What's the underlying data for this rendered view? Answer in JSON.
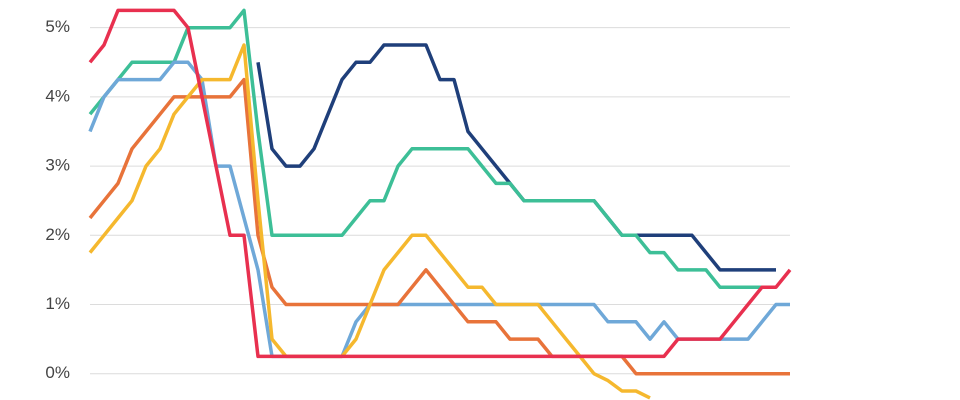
{
  "chart_data": {
    "type": "line",
    "categories": [
      null,
      null,
      null,
      null,
      null,
      null,
      null,
      null,
      null,
      null,
      null,
      null,
      null,
      null,
      null,
      null,
      null,
      null,
      null,
      null,
      null,
      null,
      null,
      null,
      null,
      null,
      null,
      null,
      null,
      null,
      null,
      null,
      null,
      null,
      null,
      null,
      null,
      null,
      null,
      null,
      null,
      null,
      null,
      null,
      null,
      null,
      null,
      null,
      null,
      null,
      null
    ],
    "ylim": [
      -0.38,
      5.4
    ],
    "yticks": [
      {
        "value": 0,
        "label": "0%"
      },
      {
        "value": 1,
        "label": "1%"
      },
      {
        "value": 2,
        "label": "2%"
      },
      {
        "value": 3,
        "label": "3%"
      },
      {
        "value": 4,
        "label": "4%"
      },
      {
        "value": 5,
        "label": "5%"
      }
    ],
    "grid": true,
    "series": [
      {
        "color": "#1f3f7a",
        "values": [
          null,
          null,
          null,
          null,
          null,
          null,
          null,
          null,
          null,
          null,
          null,
          null,
          4.5,
          3.25,
          3.0,
          3.0,
          3.25,
          3.75,
          4.25,
          4.5,
          4.5,
          4.75,
          4.75,
          4.75,
          4.75,
          4.25,
          4.25,
          3.5,
          3.25,
          3.0,
          2.75,
          2.5,
          2.5,
          2.5,
          2.5,
          2.5,
          2.5,
          2.25,
          2.0,
          2.0,
          2.0,
          2.0,
          2.0,
          2.0,
          1.75,
          1.5,
          1.5,
          1.5,
          1.5,
          1.5,
          null
        ]
      },
      {
        "color": "#3dbf97",
        "values": [
          3.75,
          4.0,
          4.25,
          4.5,
          4.5,
          4.5,
          4.5,
          5.0,
          5.0,
          5.0,
          5.0,
          5.25,
          3.5,
          2.0,
          2.0,
          2.0,
          2.0,
          2.0,
          2.0,
          2.25,
          2.5,
          2.5,
          3.0,
          3.25,
          3.25,
          3.25,
          3.25,
          3.25,
          3.0,
          2.75,
          2.75,
          2.5,
          2.5,
          2.5,
          2.5,
          2.5,
          2.5,
          2.25,
          2.0,
          2.0,
          1.75,
          1.75,
          1.5,
          1.5,
          1.5,
          1.25,
          1.25,
          1.25,
          1.25,
          1.25,
          null
        ]
      },
      {
        "color": "#6fa8d8",
        "values": [
          3.5,
          4.0,
          4.25,
          4.25,
          4.25,
          4.25,
          4.5,
          4.5,
          4.25,
          3.0,
          3.0,
          2.25,
          1.5,
          0.25,
          0.25,
          0.25,
          0.25,
          0.25,
          0.25,
          0.75,
          1.0,
          1.0,
          1.0,
          1.0,
          1.0,
          1.0,
          1.0,
          1.0,
          1.0,
          1.0,
          1.0,
          1.0,
          1.0,
          1.0,
          1.0,
          1.0,
          1.0,
          0.75,
          0.75,
          0.75,
          0.5,
          0.75,
          0.5,
          0.5,
          0.5,
          0.5,
          0.5,
          0.5,
          0.75,
          1.0,
          1.0
        ]
      },
      {
        "color": "#e8733a",
        "values": [
          2.25,
          2.5,
          2.75,
          3.25,
          3.5,
          3.75,
          4.0,
          4.0,
          4.0,
          4.0,
          4.0,
          4.25,
          2.0,
          1.25,
          1.0,
          1.0,
          1.0,
          1.0,
          1.0,
          1.0,
          1.0,
          1.0,
          1.0,
          1.25,
          1.5,
          1.25,
          1.0,
          0.75,
          0.75,
          0.75,
          0.5,
          0.5,
          0.5,
          0.25,
          0.25,
          0.25,
          0.25,
          0.25,
          0.25,
          0.0,
          0.0,
          0.0,
          0.0,
          0.0,
          0.0,
          0.0,
          0.0,
          0.0,
          0.0,
          0.0,
          0.0
        ]
      },
      {
        "color": "#f5b82e",
        "values": [
          1.75,
          2.0,
          2.25,
          2.5,
          3.0,
          3.25,
          3.75,
          4.0,
          4.25,
          4.25,
          4.25,
          4.75,
          2.5,
          0.5,
          0.25,
          0.25,
          0.25,
          0.25,
          0.25,
          0.5,
          1.0,
          1.5,
          1.75,
          2.0,
          2.0,
          1.75,
          1.5,
          1.25,
          1.25,
          1.0,
          1.0,
          1.0,
          1.0,
          0.75,
          0.5,
          0.25,
          0.0,
          -0.1,
          -0.25,
          -0.25,
          -0.35,
          null,
          null,
          null,
          null,
          null,
          null,
          null,
          null,
          null,
          null
        ]
      },
      {
        "color": "#e8304f",
        "values": [
          4.5,
          4.75,
          5.25,
          5.25,
          5.25,
          5.25,
          5.25,
          5.0,
          4.0,
          3.0,
          2.0,
          2.0,
          0.25,
          0.25,
          0.25,
          0.25,
          0.25,
          0.25,
          0.25,
          0.25,
          0.25,
          0.25,
          0.25,
          0.25,
          0.25,
          0.25,
          0.25,
          0.25,
          0.25,
          0.25,
          0.25,
          0.25,
          0.25,
          0.25,
          0.25,
          0.25,
          0.25,
          0.25,
          0.25,
          0.25,
          0.25,
          0.25,
          0.5,
          0.5,
          0.5,
          0.5,
          0.75,
          1.0,
          1.25,
          1.25,
          1.5
        ]
      }
    ]
  }
}
